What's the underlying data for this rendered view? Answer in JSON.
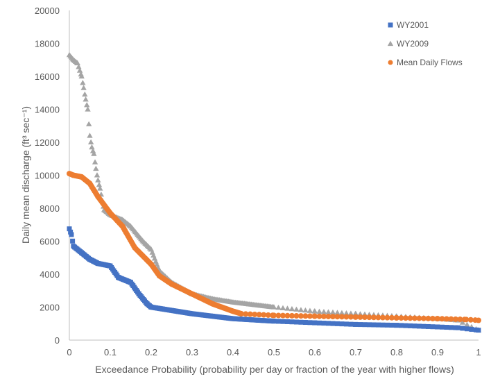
{
  "chart_data": {
    "type": "scatter",
    "title": "",
    "xlabel": "Exceedance Probability (probability per day or fraction of the year with higher flows)",
    "ylabel": "Daily mean discharge (ft³ sec⁻¹)",
    "xlim": [
      0,
      1
    ],
    "ylim": [
      0,
      20000
    ],
    "xticks": [
      "0",
      "0.1",
      "0.2",
      "0.3",
      "0.4",
      "0.5",
      "0.6",
      "0.7",
      "0.8",
      "0.9",
      "1"
    ],
    "yticks": [
      "0",
      "2000",
      "4000",
      "6000",
      "8000",
      "10000",
      "12000",
      "14000",
      "16000",
      "18000",
      "20000"
    ],
    "grid": false,
    "legend": "top-right",
    "series": [
      {
        "name": "WY2001",
        "marker": "square",
        "color": "#4472C4",
        "points": [
          [
            0,
            6750
          ],
          [
            0.005,
            6400
          ],
          [
            0.01,
            5700
          ],
          [
            0.03,
            5300
          ],
          [
            0.05,
            4900
          ],
          [
            0.07,
            4650
          ],
          [
            0.1,
            4500
          ],
          [
            0.12,
            3800
          ],
          [
            0.15,
            3500
          ],
          [
            0.17,
            2800
          ],
          [
            0.19,
            2200
          ],
          [
            0.2,
            2000
          ],
          [
            0.25,
            1800
          ],
          [
            0.3,
            1600
          ],
          [
            0.35,
            1450
          ],
          [
            0.4,
            1300
          ],
          [
            0.5,
            1150
          ],
          [
            0.6,
            1050
          ],
          [
            0.7,
            950
          ],
          [
            0.8,
            900
          ],
          [
            0.9,
            800
          ],
          [
            0.95,
            750
          ],
          [
            1,
            600
          ]
        ]
      },
      {
        "name": "WY2009",
        "marker": "triangle",
        "color": "#A5A5A5",
        "points": [
          [
            0,
            17300
          ],
          [
            0.01,
            17000
          ],
          [
            0.02,
            16800
          ],
          [
            0.03,
            16000
          ],
          [
            0.035,
            15300
          ],
          [
            0.04,
            14600
          ],
          [
            0.045,
            14000
          ],
          [
            0.05,
            12400
          ],
          [
            0.055,
            11700
          ],
          [
            0.06,
            11300
          ],
          [
            0.065,
            10400
          ],
          [
            0.07,
            9700
          ],
          [
            0.075,
            9200
          ],
          [
            0.085,
            7900
          ],
          [
            0.1,
            7600
          ],
          [
            0.13,
            7300
          ],
          [
            0.15,
            6900
          ],
          [
            0.18,
            6000
          ],
          [
            0.2,
            5500
          ],
          [
            0.22,
            4200
          ],
          [
            0.25,
            3500
          ],
          [
            0.3,
            2800
          ],
          [
            0.35,
            2500
          ],
          [
            0.4,
            2300
          ],
          [
            0.5,
            2000
          ],
          [
            0.6,
            1750
          ],
          [
            0.7,
            1600
          ],
          [
            0.8,
            1450
          ],
          [
            0.9,
            1300
          ],
          [
            0.95,
            1200
          ],
          [
            1,
            600
          ]
        ]
      },
      {
        "name": "Mean Daily Flows",
        "marker": "circle",
        "color": "#ED7D31",
        "points": [
          [
            0,
            10100
          ],
          [
            0.01,
            10000
          ],
          [
            0.03,
            9900
          ],
          [
            0.05,
            9500
          ],
          [
            0.07,
            8700
          ],
          [
            0.1,
            7700
          ],
          [
            0.13,
            6900
          ],
          [
            0.16,
            5600
          ],
          [
            0.2,
            4600
          ],
          [
            0.22,
            3900
          ],
          [
            0.25,
            3400
          ],
          [
            0.3,
            2800
          ],
          [
            0.35,
            2200
          ],
          [
            0.4,
            1750
          ],
          [
            0.42,
            1600
          ],
          [
            0.5,
            1500
          ],
          [
            0.6,
            1450
          ],
          [
            0.7,
            1400
          ],
          [
            0.8,
            1350
          ],
          [
            0.9,
            1300
          ],
          [
            0.97,
            1250
          ],
          [
            1,
            1200
          ]
        ]
      }
    ]
  }
}
